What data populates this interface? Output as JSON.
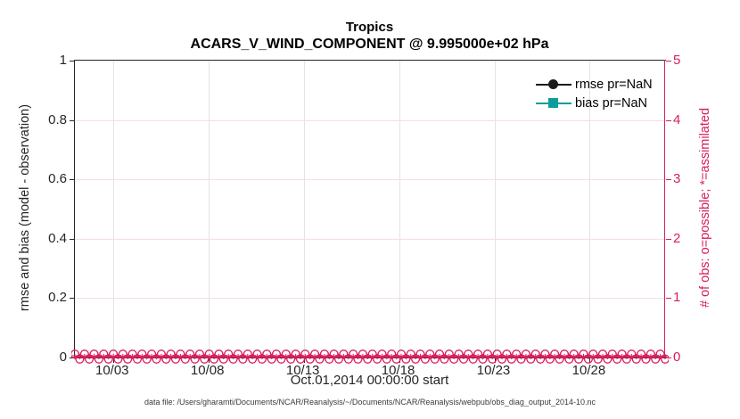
{
  "title": {
    "line1": "Tropics",
    "line2": "ACARS_V_WIND_COMPONENT @ 9.995000e+02 hPa"
  },
  "colors": {
    "crimson": "#d81e5b",
    "teal": "#0d9c9c",
    "axis": "#262626",
    "grid_vertical": "#e3e3e3",
    "grid_horizontal": "#f8dce5"
  },
  "left_axis": {
    "label": "rmse and bias (model - observation)",
    "tick_labels": [
      "0",
      "0.2",
      "0.4",
      "0.6",
      "0.8",
      "1"
    ],
    "tick_values": [
      0,
      0.2,
      0.4,
      0.6,
      0.8,
      1
    ],
    "min": 0,
    "max": 1
  },
  "right_axis": {
    "label": "# of obs: o=possible; *=assimilated",
    "tick_labels": [
      "0",
      "1",
      "2",
      "3",
      "4",
      "5"
    ],
    "tick_values": [
      0,
      1,
      2,
      3,
      4,
      5
    ],
    "min": 0,
    "max": 5
  },
  "x_axis": {
    "label": "Oct.01,2014 00:00:00 start",
    "tick_labels": [
      "10/03",
      "10/08",
      "10/13",
      "10/18",
      "10/23",
      "10/28"
    ],
    "tick_days": [
      3,
      8,
      13,
      18,
      23,
      28
    ],
    "range_days": [
      1,
      32
    ]
  },
  "legend": {
    "items": [
      {
        "label": "rmse pr=NaN",
        "color": "#1a1a1a",
        "marker": "circle"
      },
      {
        "label": "bias pr=NaN",
        "color": "#0d9c9c",
        "marker": "square"
      }
    ]
  },
  "footer": "data file: /Users/gharamti/Documents/NCAR/Reanalysis/~/Documents/NCAR/Reanalysis/webpub/obs_diag_output_2014-10.nc",
  "chart_data": {
    "type": "line",
    "title": "Tropics",
    "subtitle": "ACARS_V_WIND_COMPONENT @ 9.995000e+02 hPa",
    "xlabel": "Oct.01,2014 00:00:00 start",
    "ylabel_left": "rmse and bias (model - observation)",
    "ylabel_right": "# of obs: o=possible; *=assimilated",
    "ylim_left": [
      0,
      1
    ],
    "ylim_right": [
      0,
      5
    ],
    "x_tick_labels": [
      "10/03",
      "10/08",
      "10/13",
      "10/18",
      "10/23",
      "10/28"
    ],
    "grid": true,
    "legend_position": "top-right",
    "series": [
      {
        "name": "rmse pr=NaN",
        "axis": "left",
        "marker": "circle",
        "color": "#1a1a1a",
        "values": "NaN (no data plotted)"
      },
      {
        "name": "bias pr=NaN",
        "axis": "left",
        "marker": "square",
        "color": "#0d9c9c",
        "values": "NaN (no data plotted)"
      },
      {
        "name": "# of obs possible (o markers)",
        "axis": "right",
        "marker": "o",
        "color": "#d81e5b",
        "constant_value": 0,
        "n_points": 124
      },
      {
        "name": "# of obs assimilated (* markers)",
        "axis": "right",
        "marker": "*",
        "color": "#d81e5b",
        "constant_value": 0,
        "n_points": 124
      }
    ]
  }
}
